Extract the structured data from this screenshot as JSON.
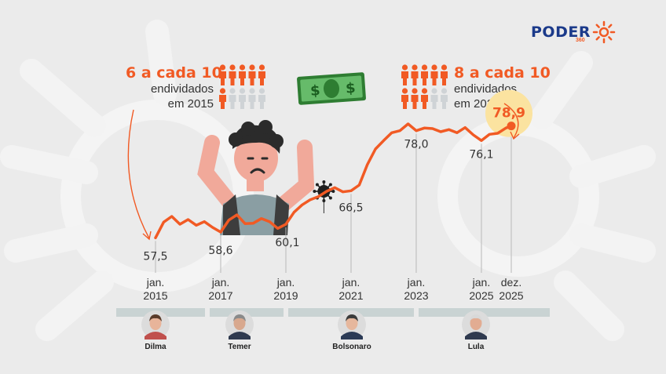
{
  "brand": {
    "name": "PODER",
    "sub": "360"
  },
  "stat_2015": {
    "headline": "6 a cada 10",
    "line1": "endividados",
    "line2": "em 2015",
    "filled": 6,
    "total": 10
  },
  "stat_2025": {
    "headline": "8 a cada 10",
    "line1": "endividados",
    "line2": "em 2025",
    "filled": 8,
    "total": 10
  },
  "colors": {
    "accent": "#f15a24",
    "grey_person": "#cfd3d6",
    "highlight": "#fbe3a0",
    "bar": "#c9d3d3"
  },
  "icons": [
    "money-bill-icon",
    "virus-icon",
    "sad-person-illustration"
  ],
  "chart_data": {
    "type": "line",
    "x_start": "2015-01",
    "x_end": "2025-12",
    "series": [
      {
        "points": [
          [
            "2015-01",
            57.5
          ],
          [
            "2015-04",
            60.5
          ],
          [
            "2015-07",
            61.6
          ],
          [
            "2015-10",
            60.1
          ],
          [
            "2016-01",
            61.0
          ],
          [
            "2016-04",
            59.9
          ],
          [
            "2016-07",
            60.6
          ],
          [
            "2016-10",
            59.5
          ],
          [
            "2017-01",
            58.6
          ],
          [
            "2017-04",
            60.9
          ],
          [
            "2017-07",
            61.9
          ],
          [
            "2017-10",
            60.2
          ],
          [
            "2018-01",
            60.3
          ],
          [
            "2018-04",
            61.2
          ],
          [
            "2018-07",
            60.6
          ],
          [
            "2018-10",
            59.3
          ],
          [
            "2019-01",
            60.1
          ],
          [
            "2019-04",
            62.4
          ],
          [
            "2019-07",
            63.8
          ],
          [
            "2019-10",
            64.8
          ],
          [
            "2020-01",
            65.4
          ],
          [
            "2020-04",
            66.4
          ],
          [
            "2020-07",
            67.1
          ],
          [
            "2020-10",
            66.3
          ],
          [
            "2021-01",
            66.5
          ],
          [
            "2021-04",
            67.6
          ],
          [
            "2021-07",
            71.5
          ],
          [
            "2021-10",
            74.5
          ],
          [
            "2022-01",
            76.1
          ],
          [
            "2022-04",
            77.6
          ],
          [
            "2022-07",
            78.0
          ],
          [
            "2022-10",
            79.3
          ],
          [
            "2023-01",
            78.0
          ],
          [
            "2023-04",
            78.5
          ],
          [
            "2023-07",
            78.4
          ],
          [
            "2023-10",
            77.8
          ],
          [
            "2024-01",
            78.2
          ],
          [
            "2024-04",
            77.6
          ],
          [
            "2024-07",
            78.6
          ],
          [
            "2024-10",
            77.2
          ],
          [
            "2025-01",
            76.1
          ],
          [
            "2025-04",
            77.3
          ],
          [
            "2025-07",
            77.5
          ],
          [
            "2025-10",
            78.5
          ],
          [
            "2025-12",
            78.9
          ]
        ]
      }
    ],
    "value_labels": [
      {
        "x": "2015-01",
        "label": "57,5"
      },
      {
        "x": "2017-01",
        "label": "58,6"
      },
      {
        "x": "2019-01",
        "label": "60,1"
      },
      {
        "x": "2021-01",
        "label": "66,5"
      },
      {
        "x": "2023-01",
        "label": "78,0"
      },
      {
        "x": "2025-01",
        "label": "76,1"
      },
      {
        "x": "2025-12",
        "label": "78,9"
      }
    ],
    "x_ticks": [
      {
        "x": "2015-01",
        "line1": "jan.",
        "line2": "2015"
      },
      {
        "x": "2017-01",
        "line1": "jan.",
        "line2": "2017"
      },
      {
        "x": "2019-01",
        "line1": "jan.",
        "line2": "2019"
      },
      {
        "x": "2021-01",
        "line1": "jan.",
        "line2": "2021"
      },
      {
        "x": "2023-01",
        "line1": "jan.",
        "line2": "2023"
      },
      {
        "x": "2025-01",
        "line1": "jan.",
        "line2": "2025"
      },
      {
        "x": "2025-12",
        "line1": "dez.",
        "line2": "2025"
      }
    ],
    "annotation_x": "2020-03",
    "ylim": [
      55,
      82
    ],
    "grid": false,
    "presidents": [
      {
        "name": "Dilma",
        "from": "2015-01",
        "to": "2016-08"
      },
      {
        "name": "Temer",
        "from": "2016-08",
        "to": "2019-01"
      },
      {
        "name": "Bolsonaro",
        "from": "2019-01",
        "to": "2023-01"
      },
      {
        "name": "Lula",
        "from": "2023-01",
        "to": "2025-12"
      }
    ]
  }
}
